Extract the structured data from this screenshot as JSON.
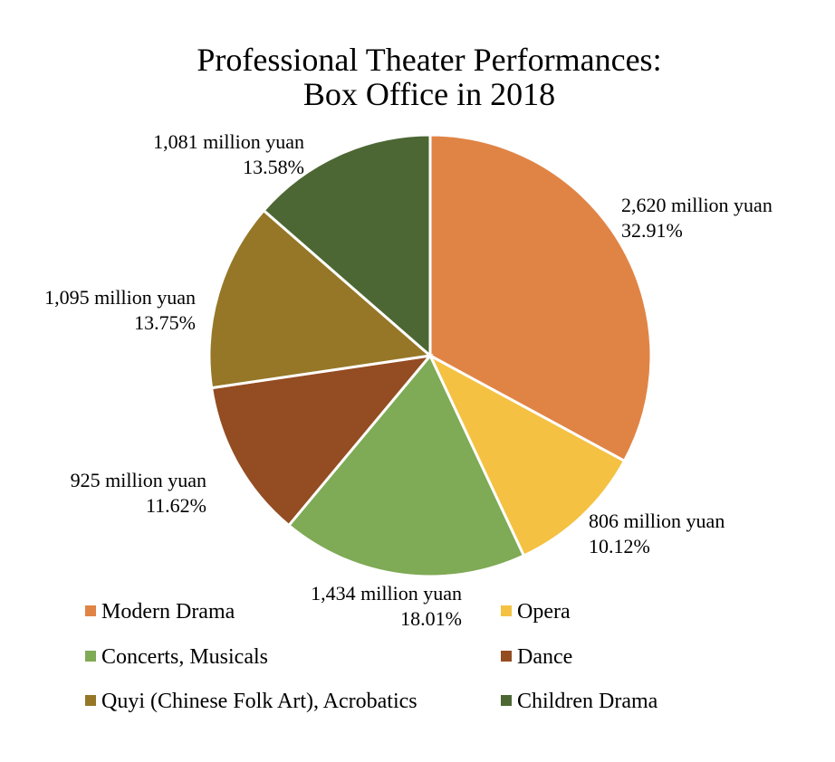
{
  "chart_data": {
    "type": "pie",
    "title": [
      "Professional Theater Performances:",
      "Box Office in 2018"
    ],
    "slices": [
      {
        "name": "Modern Drama",
        "value": 2620,
        "value_label": "2,620 million yuan",
        "percent_label": "32.91%",
        "color": "#E08445"
      },
      {
        "name": "Opera",
        "value": 806,
        "value_label": "806 million yuan",
        "percent_label": "10.12%",
        "color": "#F4C142"
      },
      {
        "name": "Concerts, Musicals",
        "value": 1434,
        "value_label": "1,434 million yuan",
        "percent_label": "18.01%",
        "color": "#7FAA56"
      },
      {
        "name": "Dance",
        "value": 925,
        "value_label": "925 million yuan",
        "percent_label": "11.62%",
        "color": "#944C22"
      },
      {
        "name": "Quyi (Chinese Folk Art), Acrobatics",
        "value": 1095,
        "value_label": "1,095 million yuan",
        "percent_label": "13.75%",
        "color": "#957727"
      },
      {
        "name": "Children Drama",
        "value": 1081,
        "value_label": "1,081 million yuan",
        "percent_label": "13.58%",
        "color": "#4C6733"
      }
    ],
    "legend_position": "bottom"
  }
}
